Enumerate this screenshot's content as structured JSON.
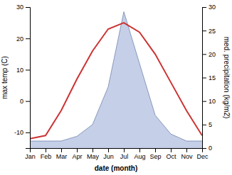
{
  "chart_data": {
    "type": "line",
    "xlabel": "date (month)",
    "ylabel": "max temp (C)",
    "y2label": "med. precipitation (kg/m2)",
    "categories": [
      "Jan",
      "Feb",
      "Mar",
      "Apr",
      "May",
      "Jun",
      "Jul",
      "Aug",
      "Sep",
      "Oct",
      "Nov",
      "Dec"
    ],
    "series": [
      {
        "type": "area",
        "axis": "y2",
        "color": "#c5cfe8",
        "values": [
          1.5,
          1.5,
          1.5,
          2.5,
          5,
          13,
          29,
          18,
          7,
          3,
          1.5,
          1.5
        ]
      },
      {
        "type": "line",
        "axis": "y2",
        "color": "#8899bb",
        "values": [
          1.5,
          1.5,
          1.5,
          2.5,
          5,
          13,
          29,
          18,
          7,
          3,
          1.5,
          1.5
        ]
      },
      {
        "type": "line",
        "color": "#cc3333",
        "values": [
          -12,
          -11,
          -3,
          7,
          16,
          23,
          25,
          22,
          15,
          6,
          -3,
          -11
        ]
      }
    ],
    "ylim": [
      -15,
      30
    ],
    "yticks": [
      -10,
      0,
      10,
      20,
      30
    ],
    "y2lim": [
      0,
      30
    ],
    "y2ticks": [
      0,
      5,
      10,
      15,
      20,
      25,
      30
    ],
    "grid": false
  }
}
